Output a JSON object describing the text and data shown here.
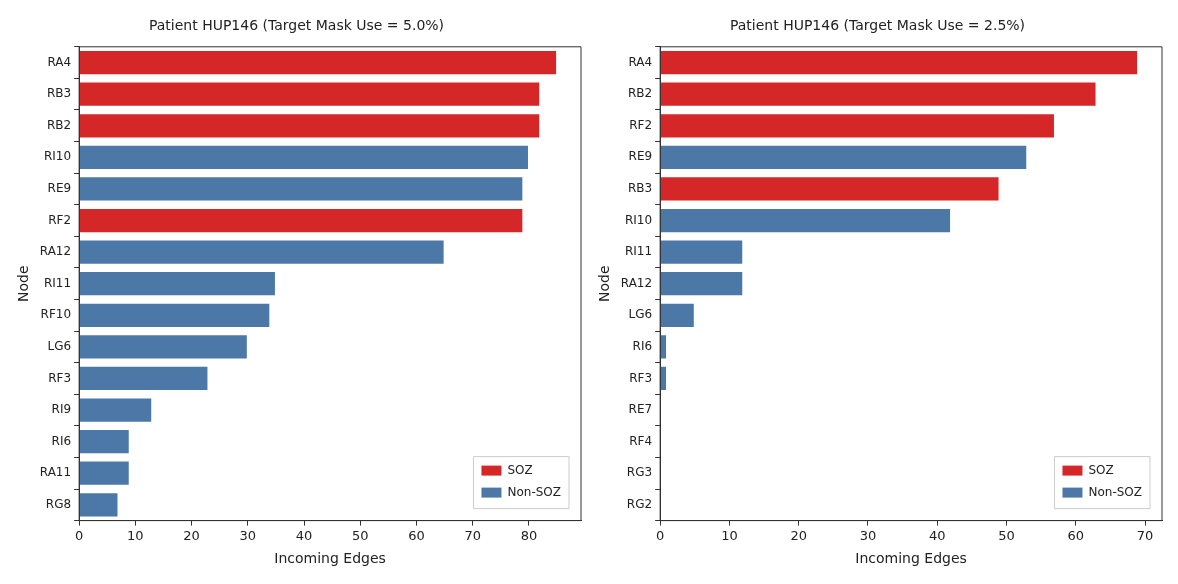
{
  "chart_data": [
    {
      "type": "bar",
      "orientation": "horizontal",
      "title": "Patient HUP146 (Target Mask Use = 5.0%)",
      "xlabel": "Incoming Edges",
      "ylabel": "Node",
      "categories": [
        "RA4",
        "RB3",
        "RB2",
        "RI10",
        "RE9",
        "RF2",
        "RA12",
        "RI11",
        "RF10",
        "LG6",
        "RF3",
        "RI9",
        "RI6",
        "RA11",
        "RG8"
      ],
      "series": [
        {
          "name": "SOZ",
          "color": "#d62728",
          "values": [
            85,
            82,
            82,
            null,
            null,
            79,
            null,
            null,
            null,
            null,
            null,
            null,
            null,
            null,
            null
          ]
        },
        {
          "name": "Non-SOZ",
          "color": "#4c78a8",
          "values": [
            null,
            null,
            null,
            80,
            79,
            null,
            65,
            35,
            34,
            30,
            23,
            13,
            9,
            9,
            7
          ]
        }
      ],
      "xlim": [
        0,
        89.25
      ],
      "xticks": [
        0,
        10,
        20,
        30,
        40,
        50,
        60,
        70,
        80
      ],
      "grid": false,
      "legend": "bottom right"
    },
    {
      "type": "bar",
      "orientation": "horizontal",
      "title": "Patient HUP146 (Target Mask Use = 2.5%)",
      "xlabel": "Incoming Edges",
      "ylabel": "Node",
      "categories": [
        "RA4",
        "RB2",
        "RF2",
        "RE9",
        "RB3",
        "RI10",
        "RI11",
        "RA12",
        "LG6",
        "RI6",
        "RF3",
        "RE7",
        "RF4",
        "RG3",
        "RG2"
      ],
      "series": [
        {
          "name": "SOZ",
          "color": "#d62728",
          "values": [
            69,
            63,
            57,
            null,
            49,
            null,
            null,
            null,
            null,
            null,
            null,
            null,
            null,
            null,
            null
          ]
        },
        {
          "name": "Non-SOZ",
          "color": "#4c78a8",
          "values": [
            null,
            null,
            null,
            53,
            null,
            42,
            12,
            12,
            5,
            1,
            1,
            0,
            0,
            0,
            0
          ]
        }
      ],
      "xlim": [
        0,
        72.45
      ],
      "xticks": [
        0,
        10,
        20,
        30,
        40,
        50,
        60,
        70
      ],
      "grid": false,
      "legend": "bottom right"
    }
  ]
}
